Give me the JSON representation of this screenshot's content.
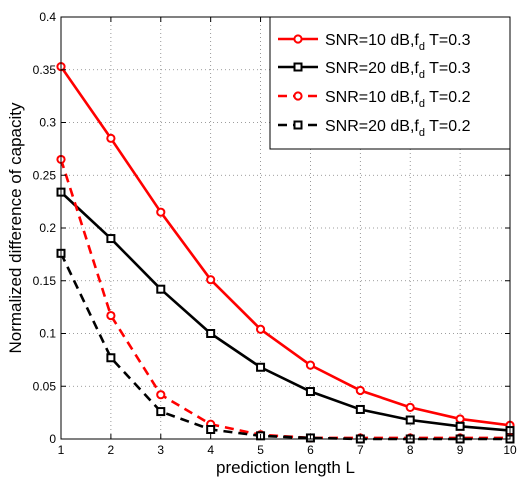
{
  "chart_data": {
    "type": "line",
    "xlabel": "prediction length L",
    "ylabel": "Normalized difference of capacity",
    "xlim": [
      1,
      10
    ],
    "ylim": [
      0,
      0.4
    ],
    "xticks": [
      "1",
      "2",
      "3",
      "4",
      "5",
      "6",
      "7",
      "8",
      "9",
      "10"
    ],
    "yticks": [
      "0",
      "0.05",
      "0.1",
      "0.15",
      "0.2",
      "0.25",
      "0.3",
      "0.35",
      "0.4"
    ],
    "grid": true,
    "legend_position": "top-right",
    "x": [
      1,
      2,
      3,
      4,
      5,
      6,
      7,
      8,
      9,
      10
    ],
    "series": [
      {
        "name": "SNR=10 dB,f_d T=0.3",
        "legend": {
          "pre": "SNR=10 dB,f",
          "sub": "d",
          "post": " T=0.3"
        },
        "values": [
          0.353,
          0.285,
          0.215,
          0.151,
          0.104,
          0.07,
          0.046,
          0.03,
          0.019,
          0.013
        ],
        "color": "#ff0000",
        "line": "solid",
        "marker": "circle"
      },
      {
        "name": "SNR=20 dB,f_d T=0.3",
        "legend": {
          "pre": "SNR=20 dB,f",
          "sub": "d",
          "post": " T=0.3"
        },
        "values": [
          0.234,
          0.19,
          0.142,
          0.1,
          0.068,
          0.045,
          0.028,
          0.018,
          0.012,
          0.008
        ],
        "color": "#000000",
        "line": "solid",
        "marker": "square"
      },
      {
        "name": "SNR=10 dB,f_d T=0.2",
        "legend": {
          "pre": "SNR=10 dB,f",
          "sub": "d",
          "post": " T=0.2"
        },
        "values": [
          0.265,
          0.117,
          0.042,
          0.014,
          0.004,
          0.001,
          0.001,
          0.001,
          0.001,
          0.001
        ],
        "color": "#ff0000",
        "line": "dashed",
        "marker": "circle"
      },
      {
        "name": "SNR=20 dB,f_d T=0.2",
        "legend": {
          "pre": "SNR=20 dB,f",
          "sub": "d",
          "post": " T=0.2"
        },
        "values": [
          0.176,
          0.077,
          0.026,
          0.009,
          0.003,
          0.001,
          0.0,
          0.0,
          0.0,
          0.0
        ],
        "color": "#000000",
        "line": "dashed",
        "marker": "square"
      }
    ]
  }
}
